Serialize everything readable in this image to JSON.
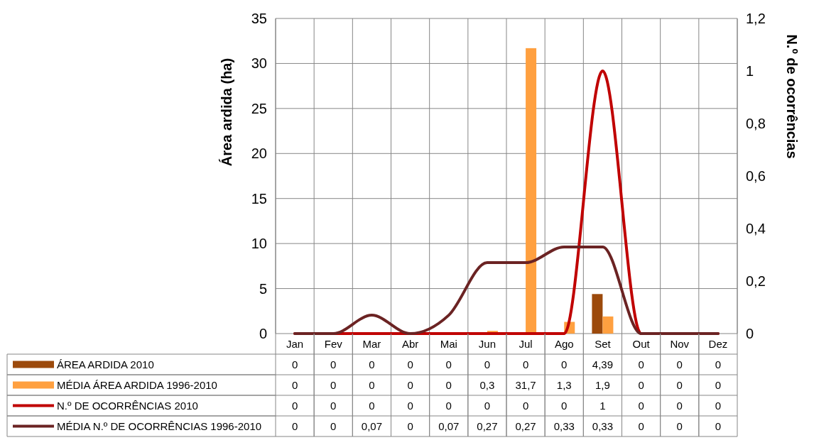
{
  "chart_data": {
    "type": "bar",
    "ylabel": "Área ardida (ha)",
    "y2label": "N.º de ocorrências",
    "categories": [
      "Jan",
      "Fev",
      "Mar",
      "Abr",
      "Mai",
      "Jun",
      "Jul",
      "Ago",
      "Set",
      "Out",
      "Nov",
      "Dez"
    ],
    "ylim": [
      0,
      35
    ],
    "yticks": [
      0,
      5,
      10,
      15,
      20,
      25,
      30,
      35
    ],
    "y2lim": [
      0,
      1.2
    ],
    "y2ticks": [
      0,
      {
        "value": 0.2,
        "label": "0,2"
      },
      {
        "value": 0.4,
        "label": "0,4"
      },
      {
        "value": 0.6,
        "label": "0,6"
      },
      {
        "value": 0.8,
        "label": "0,8"
      },
      1,
      {
        "value": 1.2,
        "label": "1,2"
      }
    ],
    "grid": true,
    "legend": "bottom",
    "series": [
      {
        "name": "ÁREA ARDIDA 2010",
        "color": "#9c4a0c",
        "values": [
          0,
          0,
          0,
          0,
          0,
          0,
          0,
          0,
          4.39,
          0,
          0,
          0
        ],
        "value_labels": [
          "0",
          "0",
          "0",
          "0",
          "0",
          "0",
          "0",
          "0",
          "4,39",
          "0",
          "0",
          "0"
        ]
      },
      {
        "name": "MÉDIA ÁREA ARDIDA 1996-2010",
        "color": "#ffa040",
        "values": [
          0,
          0,
          0,
          0,
          0,
          0.3,
          31.7,
          1.3,
          1.9,
          0,
          0,
          0
        ],
        "value_labels": [
          "0",
          "0",
          "0",
          "0",
          "0",
          "0,3",
          "31,7",
          "1,3",
          "1,9",
          "0",
          "0",
          "0"
        ]
      },
      {
        "name": "N.º DE OCORRÊNCIAS 2010",
        "type": "line",
        "axis": "y2",
        "color": "#c00000",
        "values": [
          0,
          0,
          0,
          0,
          0,
          0,
          0,
          0,
          1,
          0,
          0,
          0
        ],
        "value_labels": [
          "0",
          "0",
          "0",
          "0",
          "0",
          "0",
          "0",
          "0",
          "1",
          "0",
          "0",
          "0"
        ]
      },
      {
        "name": "MÉDIA N.º DE OCORRÊNCIAS 1996-2010",
        "type": "line",
        "axis": "y2",
        "color": "#6b2323",
        "values": [
          0,
          0,
          0.07,
          0,
          0.07,
          0.27,
          0.27,
          0.33,
          0.33,
          0,
          0,
          0
        ],
        "value_labels": [
          "0",
          "0",
          "0,07",
          "0",
          "0,07",
          "0,27",
          "0,27",
          "0,33",
          "0,33",
          "0",
          "0",
          "0"
        ]
      }
    ]
  }
}
